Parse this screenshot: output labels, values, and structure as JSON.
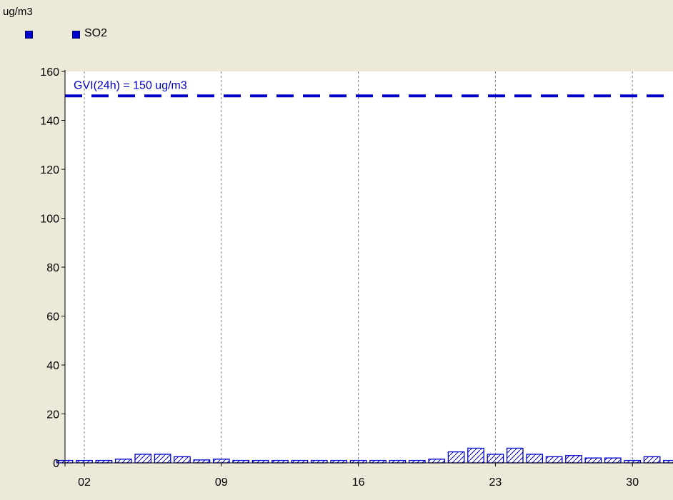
{
  "colors": {
    "background": "#ece9d8",
    "plot_area": "#ffffff",
    "series": "#0000cc",
    "guideline": "#0000cc"
  },
  "legend": {
    "entries": [
      {
        "label": "",
        "color": "#0000cc"
      },
      {
        "label": "SO2",
        "color": "#0000cc"
      }
    ]
  },
  "chart_data": {
    "type": "bar",
    "ylabel": "ug/m3",
    "ylim": [
      0,
      160
    ],
    "y_ticks": [
      0,
      20,
      40,
      60,
      80,
      100,
      120,
      140,
      160
    ],
    "x_ticks": [
      "02",
      "09",
      "16",
      "23",
      "30"
    ],
    "x_tick_days": [
      2,
      9,
      16,
      23,
      30
    ],
    "grid": "vertical dashed at x ticks",
    "legend_position": "top-left",
    "series": [
      {
        "name": "SO2",
        "pattern": "diagonal hatch",
        "days": [
          1,
          2,
          3,
          4,
          5,
          6,
          7,
          8,
          9,
          10,
          11,
          12,
          13,
          14,
          15,
          16,
          17,
          18,
          19,
          20,
          21,
          22,
          23,
          24,
          25,
          26,
          27,
          28,
          29,
          30,
          31,
          32
        ],
        "values": [
          1,
          1,
          1,
          1.5,
          3.5,
          3.5,
          2.5,
          1.2,
          1.5,
          1,
          1,
          1,
          1,
          1,
          1,
          1,
          1,
          1,
          1,
          1.5,
          4.5,
          6,
          3.5,
          6,
          3.5,
          2.5,
          3,
          2,
          2,
          1,
          2.5,
          1
        ]
      }
    ],
    "annotations": [
      {
        "text": "GVI(24h) = 150 ug/m3",
        "y": 150,
        "style": "dashed horizontal line"
      }
    ]
  }
}
